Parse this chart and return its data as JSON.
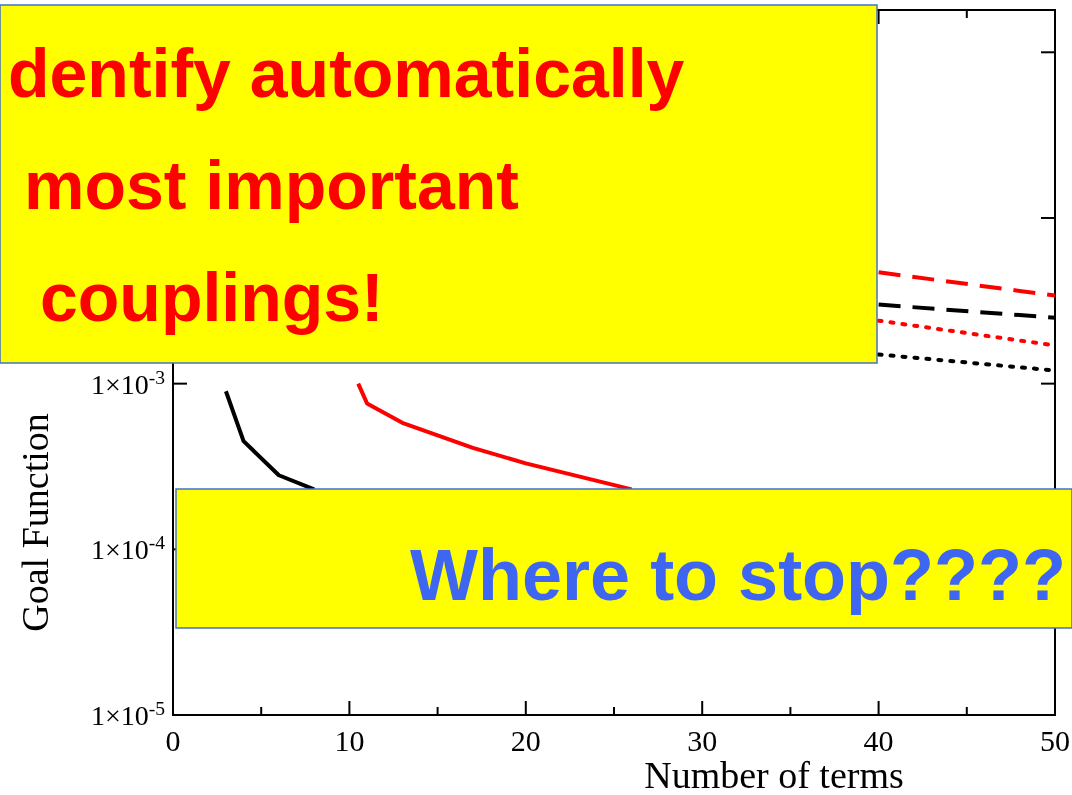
{
  "chart_data": {
    "type": "line",
    "xlabel": "Number of terms",
    "ylabel": "Goal Function",
    "log": "y",
    "xlim": [
      0,
      50
    ],
    "ylim": [
      1e-05,
      0.18
    ],
    "xticks": [
      0,
      {
        "value": 5,
        "label": null
      },
      10,
      {
        "value": 15,
        "label": null
      },
      20,
      {
        "value": 25,
        "label": null
      },
      30,
      {
        "value": 35,
        "label": null
      },
      40,
      {
        "value": 45,
        "label": null
      },
      50
    ],
    "yticks": [
      {
        "value": 1e-05,
        "label": "1×10$^{-5}$"
      },
      {
        "value": 0.0001,
        "label": "1×10$^{-4}$"
      },
      {
        "value": 0.001,
        "label": "1×10$^{-3}$"
      },
      {
        "value": 0.01,
        "label": null
      },
      {
        "value": 0.1,
        "label": null
      }
    ],
    "grid": false,
    "marker": "none",
    "series": [
      {
        "color": "#000000",
        "line_style": "solid",
        "x": [
          3,
          4,
          6,
          8
        ],
        "values": [
          0.0009,
          0.00045,
          0.00028,
          0.00023
        ]
      },
      {
        "color": "#ff0000",
        "line_style": "solid",
        "x": [
          10.5,
          11,
          13,
          17,
          20,
          26
        ],
        "values": [
          0.001,
          0.00076,
          0.00058,
          0.00041,
          0.00033,
          0.00023
        ]
      },
      {
        "color": "#ff0000",
        "line_style": "dashed",
        "x": [
          40,
          50
        ],
        "values": [
          0.0047,
          0.0034
        ]
      },
      {
        "color": "#000000",
        "line_style": "dashed",
        "x": [
          40,
          50
        ],
        "values": [
          0.003,
          0.0025
        ]
      },
      {
        "color": "#ff0000",
        "line_style": "dotted",
        "x": [
          40,
          50
        ],
        "values": [
          0.0024,
          0.0017
        ]
      },
      {
        "color": "#000000",
        "line_style": "dotted",
        "x": [
          40,
          50
        ],
        "values": [
          0.0015,
          0.0012
        ]
      }
    ],
    "annotations": [
      "dentify automatically most important couplings!",
      "Where to stop????"
    ]
  }
}
